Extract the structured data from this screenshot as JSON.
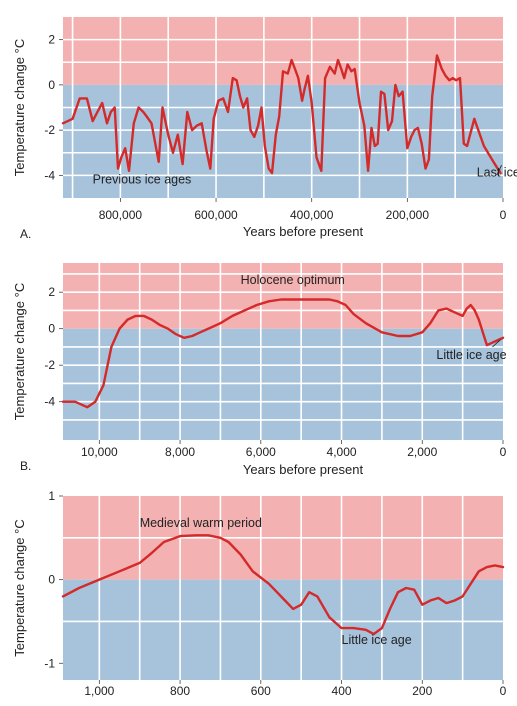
{
  "colors": {
    "warm": "#f4b1b1",
    "cool": "#a6c3db",
    "line": "#d42a2a",
    "grid": "#ffffff"
  },
  "chart_data": [
    {
      "type": "line",
      "panel_label": "A.",
      "ylabel": "Temperature change °C",
      "xlabel": "Years before present",
      "xlim": [
        920000,
        0
      ],
      "ylim": [
        -5,
        3
      ],
      "x_ticks": [
        800000,
        600000,
        400000,
        200000,
        0
      ],
      "x_tick_labels": [
        "800,000",
        "600,000",
        "400,000",
        "200,000",
        "0"
      ],
      "x_grid": [
        900000,
        800000,
        700000,
        600000,
        500000,
        400000,
        300000,
        200000,
        100000
      ],
      "y_ticks": [
        2,
        0,
        -2,
        -4
      ],
      "y_tick_labels": [
        "2",
        "0",
        "-2",
        "-4"
      ],
      "y_grid": [
        2,
        1,
        -1,
        -2,
        -3,
        -4
      ],
      "annotations": [
        {
          "text": "Previous ice ages",
          "x": 858000,
          "y": -4.35
        },
        {
          "text": "Last ice age",
          "x": 55000,
          "y": -4.05
        }
      ],
      "pointer": {
        "from": [
          13000,
          -4.0
        ],
        "to": [
          3000,
          -3.55
        ]
      },
      "x": [
        920000,
        900000,
        885000,
        870000,
        858000,
        848000,
        838000,
        828000,
        820000,
        812000,
        805000,
        798000,
        790000,
        782000,
        772000,
        762000,
        752000,
        745000,
        735000,
        720000,
        712000,
        700000,
        690000,
        680000,
        670000,
        660000,
        650000,
        640000,
        630000,
        620000,
        612000,
        605000,
        595000,
        585000,
        575000,
        565000,
        557000,
        550000,
        543000,
        535000,
        528000,
        520000,
        512000,
        505000,
        498000,
        490000,
        483000,
        475000,
        468000,
        460000,
        450000,
        442000,
        435000,
        428000,
        420000,
        415000,
        408000,
        400000,
        390000,
        380000,
        372000,
        362000,
        352000,
        345000,
        338000,
        332000,
        325000,
        317000,
        310000,
        300000,
        290000,
        282000,
        275000,
        268000,
        262000,
        255000,
        248000,
        240000,
        232000,
        225000,
        218000,
        210000,
        200000,
        192000,
        185000,
        178000,
        170000,
        162000,
        155000,
        148000,
        138000,
        128000,
        120000,
        112000,
        105000,
        98000,
        90000,
        82000,
        75000,
        60000,
        40000,
        20000,
        5000
      ],
      "y": [
        -1.7,
        -1.5,
        -0.6,
        -0.6,
        -1.6,
        -1.2,
        -0.8,
        -1.7,
        -1.2,
        -1.0,
        -3.7,
        -3.2,
        -2.8,
        -3.8,
        -1.7,
        -1.0,
        -1.2,
        -1.4,
        -1.7,
        -3.4,
        -1.0,
        -2.2,
        -3.0,
        -2.2,
        -3.5,
        -1.2,
        -2.0,
        -1.8,
        -1.7,
        -2.9,
        -3.7,
        -1.5,
        -0.7,
        -0.6,
        -1.2,
        0.3,
        0.2,
        -0.5,
        -1.0,
        -0.6,
        -2.0,
        -2.3,
        -1.8,
        -1.0,
        -2.7,
        -3.7,
        -3.9,
        -2.2,
        -1.4,
        0.6,
        0.5,
        1.1,
        0.7,
        0.3,
        -0.7,
        -0.2,
        0.4,
        -0.8,
        -3.2,
        -3.8,
        0.3,
        0.8,
        0.5,
        1.1,
        0.7,
        0.3,
        0.9,
        0.6,
        0.7,
        -0.8,
        -1.8,
        -3.8,
        -1.9,
        -2.7,
        -2.6,
        -0.3,
        -0.4,
        -2.0,
        -1.6,
        0.0,
        -0.5,
        -0.3,
        -2.8,
        -2.3,
        -2.0,
        -1.9,
        -2.6,
        -3.7,
        -3.3,
        -0.5,
        1.3,
        0.7,
        0.4,
        0.2,
        0.3,
        0.2,
        0.3,
        -2.6,
        -2.7,
        -1.5,
        -2.7,
        -3.4,
        -3.9
      ]
    },
    {
      "type": "line",
      "panel_label": "B.",
      "ylabel": "Temperature change °C",
      "xlabel": "Years before present",
      "xlim": [
        10900,
        0
      ],
      "ylim": [
        -6.1,
        3.6
      ],
      "x_ticks": [
        10000,
        8000,
        6000,
        4000,
        2000,
        0
      ],
      "x_tick_labels": [
        "10,000",
        "8,000",
        "6,000",
        "4,000",
        "2,000",
        "0"
      ],
      "x_grid": [
        10000,
        9000,
        8000,
        7000,
        6000,
        5000,
        4000,
        3000,
        2000,
        1000
      ],
      "y_ticks": [
        2,
        0,
        -2,
        -4
      ],
      "y_tick_labels": [
        "2",
        "0",
        "-2",
        "-4"
      ],
      "y_grid": [
        3,
        2,
        1,
        -1,
        -2,
        -3,
        -4,
        -5
      ],
      "annotations": [
        {
          "text": "Holocene optimum",
          "x": 6500,
          "y": 2.45
        },
        {
          "text": "Little ice age",
          "x": 1650,
          "y": -1.65
        }
      ],
      "pointer": {
        "from": [
          260,
          -1.0
        ],
        "to": [
          60,
          -0.6
        ]
      },
      "x": [
        10900,
        10600,
        10300,
        10100,
        9900,
        9700,
        9500,
        9300,
        9100,
        8900,
        8700,
        8500,
        8300,
        8100,
        7900,
        7700,
        7500,
        7200,
        7000,
        6700,
        6400,
        6100,
        5800,
        5500,
        5200,
        5000,
        4700,
        4300,
        4100,
        3900,
        3700,
        3400,
        3000,
        2600,
        2300,
        2000,
        1800,
        1600,
        1400,
        1200,
        1000,
        900,
        800,
        700,
        600,
        500,
        400,
        300,
        200,
        100,
        0
      ],
      "y": [
        -4.0,
        -4.0,
        -4.3,
        -4.0,
        -3.1,
        -1.0,
        0.0,
        0.5,
        0.7,
        0.7,
        0.5,
        0.2,
        0.0,
        -0.3,
        -0.5,
        -0.4,
        -0.2,
        0.1,
        0.3,
        0.7,
        1.0,
        1.3,
        1.5,
        1.6,
        1.6,
        1.6,
        1.6,
        1.6,
        1.5,
        1.3,
        0.8,
        0.3,
        -0.2,
        -0.4,
        -0.4,
        -0.2,
        0.3,
        1.0,
        1.1,
        0.9,
        0.7,
        1.1,
        1.3,
        1.0,
        0.5,
        -0.2,
        -0.9,
        -0.8,
        -0.7,
        -0.6,
        -0.5
      ]
    },
    {
      "type": "line",
      "panel_label": "",
      "ylabel": "Temperature change °C",
      "xlabel": "",
      "xlim": [
        1090,
        0
      ],
      "ylim": [
        -1.2,
        1.0
      ],
      "x_ticks": [
        1000,
        800,
        600,
        400,
        200,
        0
      ],
      "x_tick_labels": [
        "1,000",
        "800",
        "600",
        "400",
        "200",
        "0"
      ],
      "x_grid": [
        1000,
        900,
        800,
        700,
        600,
        500,
        400,
        300,
        200,
        100
      ],
      "y_ticks": [
        1,
        0,
        -1
      ],
      "y_tick_labels": [
        "1",
        "0",
        "-1"
      ],
      "y_grid": [
        0.5,
        -0.5
      ],
      "annotations": [
        {
          "text": "Medieval warm period",
          "x": 900,
          "y": 0.63
        },
        {
          "text": "Little ice age",
          "x": 400,
          "y": -0.77
        }
      ],
      "x": [
        1090,
        1050,
        1000,
        950,
        900,
        870,
        840,
        800,
        760,
        730,
        700,
        680,
        650,
        620,
        580,
        540,
        520,
        500,
        480,
        460,
        430,
        400,
        370,
        340,
        320,
        300,
        280,
        260,
        240,
        220,
        200,
        180,
        160,
        140,
        120,
        100,
        80,
        60,
        40,
        20,
        0
      ],
      "y": [
        -0.2,
        -0.1,
        0.0,
        0.1,
        0.2,
        0.32,
        0.45,
        0.52,
        0.53,
        0.53,
        0.5,
        0.45,
        0.3,
        0.1,
        -0.05,
        -0.25,
        -0.35,
        -0.3,
        -0.15,
        -0.2,
        -0.45,
        -0.58,
        -0.58,
        -0.6,
        -0.65,
        -0.58,
        -0.35,
        -0.15,
        -0.1,
        -0.12,
        -0.3,
        -0.25,
        -0.22,
        -0.28,
        -0.25,
        -0.2,
        -0.05,
        0.1,
        0.15,
        0.17,
        0.15
      ]
    }
  ]
}
